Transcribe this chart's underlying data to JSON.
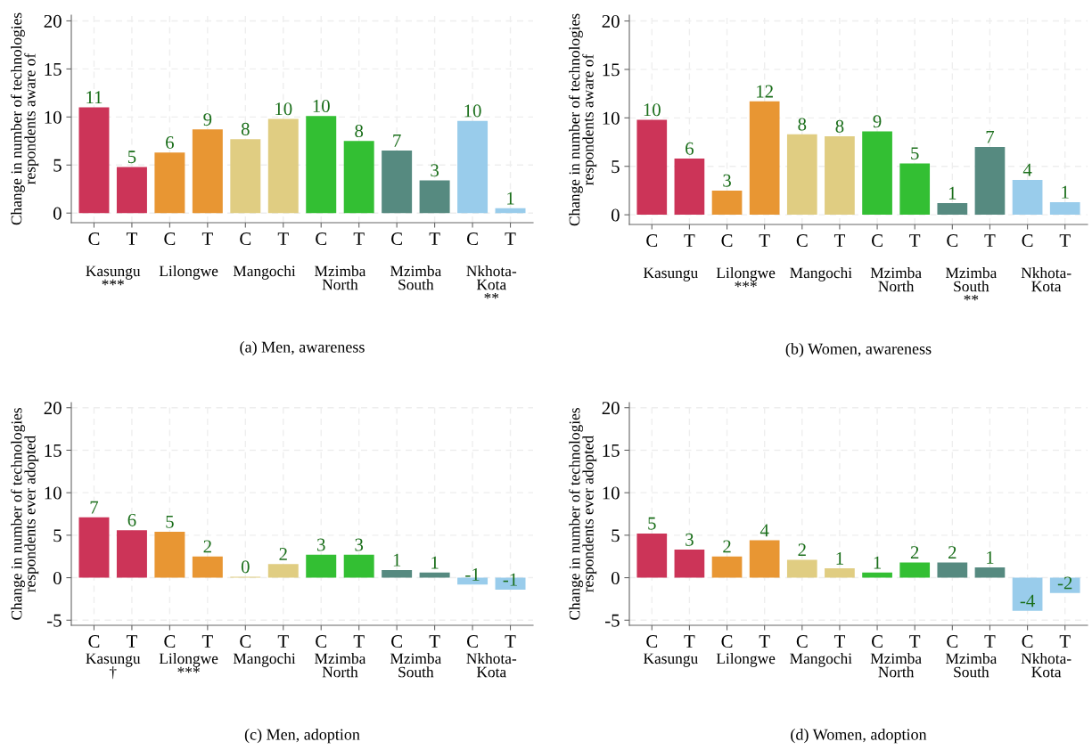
{
  "chart_data": [
    {
      "type": "bar",
      "title": "(a) Men, awareness",
      "ylabel": "Change in number of technologies\nrespondents aware of",
      "categories": [
        "C",
        "T",
        "C",
        "T",
        "C",
        "T",
        "C",
        "T",
        "C",
        "T",
        "C",
        "T"
      ],
      "values": [
        11.0,
        4.8,
        6.3,
        8.7,
        7.7,
        9.8,
        10.1,
        7.5,
        6.5,
        3.4,
        9.6,
        0.5
      ],
      "value_labels": [
        "11",
        "5",
        "6",
        "9",
        "8",
        "10",
        "10",
        "8",
        "7",
        "3",
        "10",
        "1"
      ],
      "colors": [
        "#cc3458",
        "#cc3458",
        "#e89633",
        "#e89633",
        "#e0cd82",
        "#e0cd82",
        "#33bf33",
        "#33bf33",
        "#568a80",
        "#568a80",
        "#99cceb",
        "#99cceb"
      ],
      "annotations": [
        "Kasungu\n***",
        "Lilongwe",
        "Mangochi",
        "Mzimba\nNorth",
        "Mzimba\nSouth",
        "Nkhota-\nKota\n**"
      ],
      "ylim": [
        -1.0,
        20.6
      ],
      "yticks": [
        0,
        5,
        10,
        15,
        20
      ],
      "grid": true
    },
    {
      "type": "bar",
      "title": "(b) Women, awareness",
      "ylabel": "Change in number of technologies\nrespondents aware of",
      "categories": [
        "C",
        "T",
        "C",
        "T",
        "C",
        "T",
        "C",
        "T",
        "C",
        "T",
        "C",
        "T"
      ],
      "values": [
        9.8,
        5.8,
        2.5,
        11.7,
        8.3,
        8.1,
        8.6,
        5.3,
        1.2,
        7.0,
        3.6,
        1.3
      ],
      "value_labels": [
        "10",
        "6",
        "3",
        "12",
        "8",
        "8",
        "9",
        "5",
        "1",
        "7",
        "4",
        "1"
      ],
      "colors": [
        "#cc3458",
        "#cc3458",
        "#e89633",
        "#e89633",
        "#e0cd82",
        "#e0cd82",
        "#33bf33",
        "#33bf33",
        "#568a80",
        "#568a80",
        "#99cceb",
        "#99cceb"
      ],
      "annotations": [
        "Kasungu",
        "Lilongwe\n***",
        "Mangochi",
        "Mzimba\nNorth",
        "Mzimba\nSouth\n**",
        "Nkhota-\nKota"
      ],
      "ylim": [
        -1.0,
        20.6
      ],
      "yticks": [
        0,
        5,
        10,
        15,
        20
      ],
      "grid": true
    },
    {
      "type": "bar",
      "title": "(c) Men, adoption",
      "ylabel": "Change in number of technologies\nrespondents ever adopted",
      "categories": [
        "C",
        "T",
        "C",
        "T",
        "C",
        "T",
        "C",
        "T",
        "C",
        "T",
        "C",
        "T"
      ],
      "values": [
        7.1,
        5.6,
        5.4,
        2.5,
        0.1,
        1.6,
        2.7,
        2.7,
        0.9,
        0.6,
        -0.8,
        -1.4
      ],
      "value_labels": [
        "7",
        "6",
        "5",
        "2",
        "0",
        "2",
        "3",
        "3",
        "1",
        "1",
        "-1",
        "-1"
      ],
      "colors": [
        "#cc3458",
        "#cc3458",
        "#e89633",
        "#e89633",
        "#e0cd82",
        "#e0cd82",
        "#33bf33",
        "#33bf33",
        "#568a80",
        "#568a80",
        "#99cceb",
        "#99cceb"
      ],
      "annotations": [
        "Kasungu\n†",
        "Lilongwe\n***",
        "Mangochi",
        "Mzimba\nNorth",
        "Mzimba\nSouth",
        "Nkhota-\nKota"
      ],
      "ylim": [
        -5.6,
        20.6
      ],
      "yticks": [
        -5,
        0,
        5,
        10,
        15,
        20
      ],
      "grid": true
    },
    {
      "type": "bar",
      "title": "(d) Women, adoption",
      "ylabel": "Change in number of technologies\nrespondents ever adopted",
      "categories": [
        "C",
        "T",
        "C",
        "T",
        "C",
        "T",
        "C",
        "T",
        "C",
        "T",
        "C",
        "T"
      ],
      "values": [
        5.2,
        3.3,
        2.5,
        4.4,
        2.1,
        1.1,
        0.6,
        1.8,
        1.8,
        1.2,
        -3.9,
        -1.8
      ],
      "value_labels": [
        "5",
        "3",
        "2",
        "4",
        "2",
        "1",
        "1",
        "2",
        "2",
        "1",
        "-4",
        "-2"
      ],
      "colors": [
        "#cc3458",
        "#cc3458",
        "#e89633",
        "#e89633",
        "#e0cd82",
        "#e0cd82",
        "#33bf33",
        "#33bf33",
        "#568a80",
        "#568a80",
        "#99cceb",
        "#99cceb"
      ],
      "annotations": [
        "Kasungu",
        "Lilongwe",
        "Mangochi",
        "Mzimba\nNorth",
        "Mzimba\nSouth",
        "Nkhota-\nKota"
      ],
      "ylim": [
        -5.6,
        20.6
      ],
      "yticks": [
        -5,
        0,
        5,
        10,
        15,
        20
      ],
      "grid": true
    }
  ]
}
